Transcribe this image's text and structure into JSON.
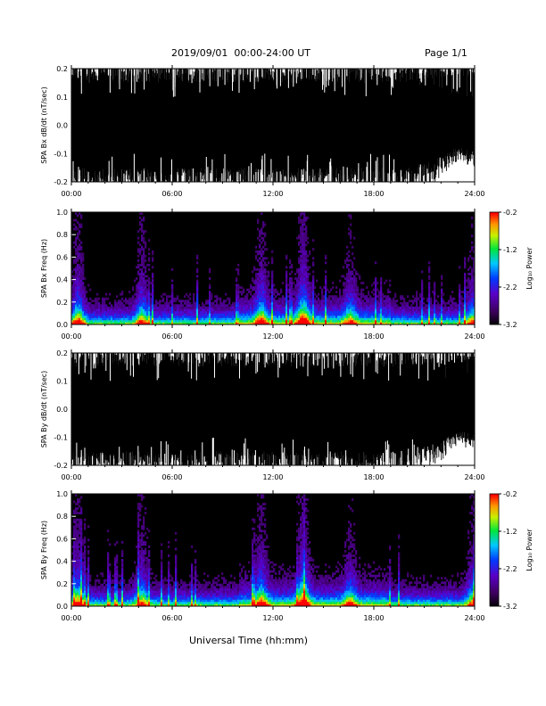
{
  "header": {
    "title": "2019/09/01  00:00-24:00 UT",
    "page": "Page 1/1"
  },
  "xaxis_label": "Universal Time (hh:mm)",
  "chart_data": [
    {
      "type": "line",
      "ylabel": "SPA Bx dB/dt (nT/sec)",
      "xlim": [
        "00:00",
        "24:00"
      ],
      "ylim": [
        -0.2,
        0.2
      ],
      "xticks": [
        "00:00",
        "06:00",
        "12:00",
        "18:00",
        "24:00"
      ],
      "yticks": [
        "-0.2",
        "-0.1",
        "0.0",
        "0.1",
        "0.2"
      ],
      "series": [
        {
          "envelope_hours": [
            0,
            3,
            6,
            9,
            12,
            15,
            18,
            20,
            22,
            23,
            24
          ],
          "envelope_abs": [
            0.2,
            0.2,
            0.2,
            0.2,
            0.2,
            0.2,
            0.2,
            0.2,
            0.15,
            0.1,
            0.12
          ]
        }
      ]
    },
    {
      "type": "heatmap",
      "ylabel": "SPA Bx Freq (Hz)",
      "xlim": [
        "00:00",
        "24:00"
      ],
      "ylim": [
        0.0,
        1.0
      ],
      "xticks": [
        "00:00",
        "06:00",
        "12:00",
        "18:00",
        "24:00"
      ],
      "yticks": [
        "0.0",
        "0.2",
        "0.4",
        "0.6",
        "0.8",
        "1.0"
      ],
      "colorbar": {
        "label": "Log₁₀ Power",
        "range": [
          -3.2,
          -0.2
        ],
        "ticks": [
          "-0.2",
          "-1.2",
          "-2.2",
          "-3.2"
        ]
      },
      "activity_hours": [
        0.4,
        4.2,
        11.3,
        13.8,
        16.6,
        23.9
      ],
      "activity_strength": [
        0.9,
        0.8,
        0.8,
        1.0,
        0.6,
        0.7
      ]
    },
    {
      "type": "line",
      "ylabel": "SPA By dB/dt (nT/sec)",
      "xlim": [
        "00:00",
        "24:00"
      ],
      "ylim": [
        -0.2,
        0.2
      ],
      "xticks": [
        "00:00",
        "06:00",
        "12:00",
        "18:00",
        "24:00"
      ],
      "yticks": [
        "-0.2",
        "-0.1",
        "0.0",
        "0.1",
        "0.2"
      ],
      "series": [
        {
          "envelope_hours": [
            0,
            3,
            6,
            9,
            12,
            15,
            18,
            20,
            22,
            23,
            24
          ],
          "envelope_abs": [
            0.2,
            0.2,
            0.2,
            0.2,
            0.2,
            0.2,
            0.2,
            0.2,
            0.15,
            0.1,
            0.12
          ]
        }
      ]
    },
    {
      "type": "heatmap",
      "ylabel": "SPA By Freq (Hz)",
      "xlim": [
        "00:00",
        "24:00"
      ],
      "ylim": [
        0.0,
        1.0
      ],
      "xticks": [
        "00:00",
        "06:00",
        "12:00",
        "18:00",
        "24:00"
      ],
      "yticks": [
        "0.0",
        "0.2",
        "0.4",
        "0.6",
        "0.8",
        "1.0"
      ],
      "colorbar": {
        "label": "Log₁₀ Power",
        "range": [
          -3.2,
          -0.2
        ],
        "ticks": [
          "-0.2",
          "-1.2",
          "-2.2",
          "-3.2"
        ]
      },
      "activity_hours": [
        0.4,
        4.2,
        11.3,
        13.8,
        16.6,
        23.9
      ],
      "activity_strength": [
        0.9,
        0.8,
        0.8,
        1.0,
        0.6,
        0.7
      ]
    }
  ]
}
